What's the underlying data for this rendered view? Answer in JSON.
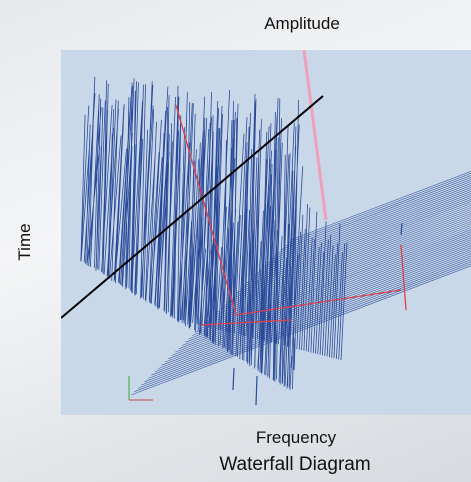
{
  "chart_data": {
    "type": "waterfall-3d",
    "title": "Waterfall Diagram",
    "xlabel": "Frequency",
    "ylabel": "Time",
    "zlabel": "Amplitude",
    "colors": {
      "background": "#c9d8e8",
      "traces": "#2a4a9a",
      "markers": "#e0404a",
      "axis_highlight": "#f0a0b8",
      "cursor_line": "#000000"
    }
  }
}
